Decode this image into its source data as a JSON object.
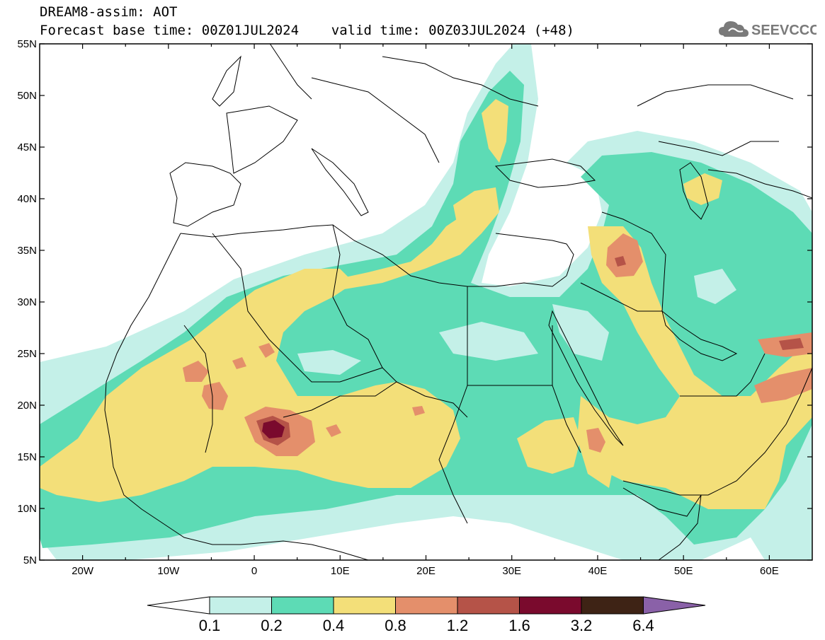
{
  "header": {
    "title_line1": "DREAM8-assim: AOT",
    "title_line2": "Forecast base time: 00Z01JUL2024    valid time: 00Z03JUL2024 (+48)",
    "logo_text": "SEEVCCC",
    "logo_icon": "cloud-icon"
  },
  "map": {
    "variable": "AOT",
    "projection": "lat-lon",
    "lon_range": [
      -25,
      65
    ],
    "lat_range": [
      5,
      55
    ],
    "lat_labels": [
      "55N",
      "50N",
      "45N",
      "40N",
      "35N",
      "30N",
      "25N",
      "20N",
      "15N",
      "10N",
      "5N"
    ],
    "lon_labels": [
      "20W",
      "10W",
      "0",
      "10E",
      "20E",
      "30E",
      "40E",
      "50E",
      "60E"
    ],
    "colors": {
      "bg": "#ffffff",
      "c1": "#c4f0e8",
      "c2": "#5ddbb5",
      "c3": "#f3df79",
      "c4": "#e48f6b",
      "c5": "#b55348",
      "c6": "#7a0a2d",
      "c7": "#3e2315",
      "c8": "#8a61a8"
    }
  },
  "colorbar": {
    "labels": [
      "0.1",
      "0.2",
      "0.4",
      "0.8",
      "1.2",
      "1.6",
      "3.2",
      "6.4"
    ],
    "colors": [
      "#c4f0e8",
      "#5ddbb5",
      "#f3df79",
      "#e48f6b",
      "#b55348",
      "#7a0a2d",
      "#3e2315"
    ],
    "under_color": "#ffffff",
    "over_color": "#8a61a8"
  }
}
